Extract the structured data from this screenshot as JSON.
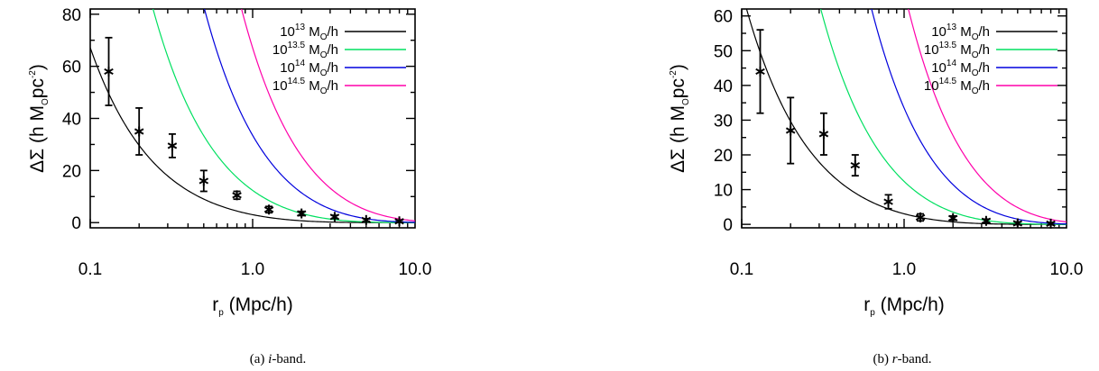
{
  "chart_data": [
    {
      "type": "line",
      "caption_label": "(a)",
      "caption_band": "i",
      "caption_suffix": "-band.",
      "xlabel_main": "r",
      "xlabel_sub": "p",
      "xlabel_rest": " (Mpc/h)",
      "ylabel_main": "ΔΣ (h M",
      "ylabel_sub": "O",
      "ylabel_mid": "pc",
      "ylabel_sup": "-2",
      "ylabel_end": ")",
      "x_scale": "log",
      "xlim": [
        0.1,
        10.0
      ],
      "ylim": [
        -2,
        82
      ],
      "x_ticks": [
        0.1,
        1.0,
        10.0
      ],
      "x_tick_labels": [
        "0.1",
        "1.0",
        "10.0"
      ],
      "y_ticks": [
        0,
        20,
        40,
        60,
        80
      ],
      "y_tick_labels": [
        "0",
        "20",
        "40",
        "60",
        "80"
      ],
      "legend_position": "top-right",
      "series": [
        {
          "name_base": "10",
          "name_exp": "13",
          "name_unit": " M",
          "name_sub": "O",
          "name_tail": "/h",
          "color": "#000000",
          "scale": 5.6
        },
        {
          "name_base": "10",
          "name_exp": "13.5",
          "name_unit": " M",
          "name_sub": "O",
          "name_tail": "/h",
          "color": "#00e060",
          "scale": 19.0
        },
        {
          "name_base": "10",
          "name_exp": "14",
          "name_unit": " M",
          "name_sub": "O",
          "name_tail": "/h",
          "color": "#0000dd",
          "scale": 44.0
        },
        {
          "name_base": "10",
          "name_exp": "14.5",
          "name_unit": " M",
          "name_sub": "O",
          "name_tail": "/h",
          "color": "#ff00aa",
          "scale": 80.0
        }
      ],
      "points": {
        "x": [
          0.13,
          0.2,
          0.32,
          0.5,
          0.8,
          1.26,
          2.0,
          3.2,
          5.0,
          8.0
        ],
        "y": [
          58,
          35,
          29.5,
          16,
          10.5,
          5,
          3.5,
          2.2,
          1,
          0.5
        ],
        "err": [
          13,
          9,
          4.5,
          4,
          1.5,
          1.2,
          0.8,
          0.6,
          0.5,
          0.4
        ]
      }
    },
    {
      "type": "line",
      "caption_label": "(b)",
      "caption_band": "r",
      "caption_suffix": "-band.",
      "xlabel_main": "r",
      "xlabel_sub": "p",
      "xlabel_rest": " (Mpc/h)",
      "ylabel_main": "ΔΣ (h M",
      "ylabel_sub": "O",
      "ylabel_mid": "pc",
      "ylabel_sup": "-2",
      "ylabel_end": ")",
      "x_scale": "log",
      "xlim": [
        0.1,
        10.0
      ],
      "ylim": [
        -1,
        62
      ],
      "x_ticks": [
        0.1,
        1.0,
        10.0
      ],
      "x_tick_labels": [
        "0.1",
        "1.0",
        "10.0"
      ],
      "y_ticks": [
        0,
        10,
        20,
        30,
        40,
        50,
        60
      ],
      "y_tick_labels": [
        "0",
        "10",
        "20",
        "30",
        "40",
        "50",
        "60"
      ],
      "legend_position": "top-right",
      "series": [
        {
          "name_base": "10",
          "name_exp": "13",
          "name_unit": " M",
          "name_sub": "O",
          "name_tail": "/h",
          "color": "#000000",
          "scale": 5.6
        },
        {
          "name_base": "10",
          "name_exp": "13.5",
          "name_unit": " M",
          "name_sub": "O",
          "name_tail": "/h",
          "color": "#00e060",
          "scale": 19.0
        },
        {
          "name_base": "10",
          "name_exp": "14",
          "name_unit": " M",
          "name_sub": "O",
          "name_tail": "/h",
          "color": "#0000dd",
          "scale": 44.0
        },
        {
          "name_base": "10",
          "name_exp": "14.5",
          "name_unit": " M",
          "name_sub": "O",
          "name_tail": "/h",
          "color": "#ff00aa",
          "scale": 80.0
        }
      ],
      "points": {
        "x": [
          0.13,
          0.2,
          0.32,
          0.5,
          0.8,
          1.26,
          2.0,
          3.2,
          5.0,
          8.0
        ],
        "y": [
          44,
          27,
          26,
          17,
          6.5,
          2,
          1.8,
          1,
          0.3,
          0.2
        ],
        "err": [
          12,
          9.5,
          6,
          3,
          2,
          1,
          0.6,
          0.5,
          0.4,
          0.3
        ]
      }
    }
  ]
}
